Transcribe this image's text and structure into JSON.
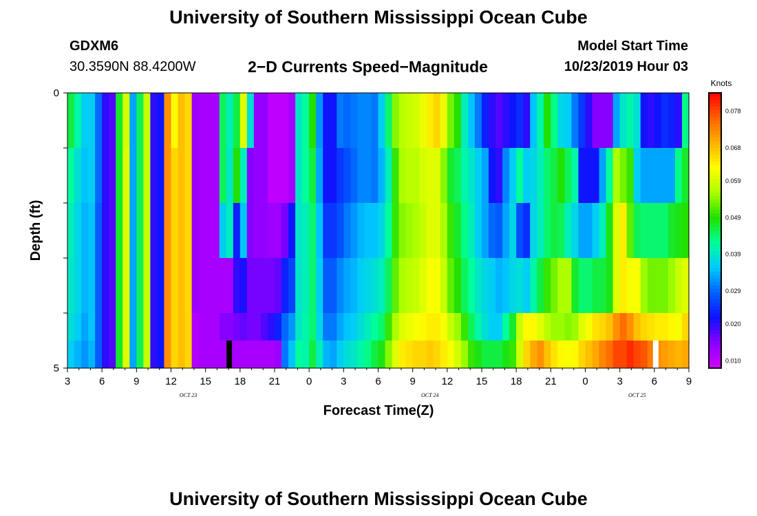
{
  "header": {
    "title": "University of Southern Mississippi Ocean Cube",
    "station": "GDXM6",
    "coords": "30.3590N 88.4200W",
    "subtitle": "2−D Currents Speed−Magnitude",
    "model_label": "Model Start Time",
    "model_time": "10/23/2019 Hour 03"
  },
  "footer": {
    "title": "University of Southern Mississippi Ocean Cube"
  },
  "chart_data": {
    "type": "heatmap",
    "title": "2−D Currents Speed−Magnitude",
    "xlabel": "Forecast Time(Z)",
    "ylabel": "Depth (ft)",
    "ylim": [
      0,
      5
    ],
    "y_tick_labels": [
      "0",
      "5"
    ],
    "x_hours": [
      3,
      6,
      9,
      12,
      15,
      18,
      21,
      0,
      3,
      6,
      9,
      12,
      15,
      18,
      21,
      0,
      3,
      6,
      9
    ],
    "x_date_labels": [
      {
        "after_hour_index": 3,
        "text": "OCT  23"
      },
      {
        "after_hour_index": 10,
        "text": "OCT  24"
      },
      {
        "after_hour_index": 16,
        "text": "OCT  25"
      }
    ],
    "x_range_hours": [
      0,
      54
    ],
    "depth_layers": [
      0,
      1,
      2,
      3,
      4,
      5
    ],
    "colorbar": {
      "unit": "Knots",
      "min": 0.008,
      "max": 0.083,
      "ticks": [
        "0.078",
        "0.068",
        "0.059",
        "0.049",
        "0.039",
        "0.029",
        "0.020",
        "0.010"
      ],
      "tick_values": [
        0.078,
        0.068,
        0.059,
        0.049,
        0.039,
        0.029,
        0.02,
        0.01
      ],
      "colors": [
        "#d200ff",
        "#8a00ff",
        "#1010ff",
        "#0060ff",
        "#00c8ff",
        "#00ff99",
        "#20e000",
        "#aaff00",
        "#ffff00",
        "#ffb000",
        "#ff6000",
        "#ff0000"
      ]
    },
    "speed_knots": [
      [
        0.046,
        0.041,
        0.036,
        0.036,
        0.029,
        0.02,
        0.018,
        0.047,
        0.059,
        0.033,
        0.045,
        0.058,
        0.02,
        0.022,
        0.072,
        0.063,
        0.068,
        0.066,
        0.013,
        0.012,
        0.012,
        0.012,
        0.045,
        0.04,
        0.046,
        0.06,
        0.038,
        0.014,
        0.014,
        0.01,
        0.01,
        0.01,
        0.012,
        0.039,
        0.042,
        0.049,
        0.032,
        0.022,
        0.022,
        0.03,
        0.029,
        0.03,
        0.031,
        0.031,
        0.03,
        0.036,
        0.044,
        0.054,
        0.057,
        0.058,
        0.059,
        0.061,
        0.064,
        0.066,
        0.061,
        0.053,
        0.049,
        0.04,
        0.035,
        0.03,
        0.023,
        0.02,
        0.018,
        0.02,
        0.022,
        0.024,
        0.02,
        0.035,
        0.041,
        0.049,
        0.043,
        0.037,
        0.036,
        0.03,
        0.025,
        0.02,
        0.015,
        0.015,
        0.015,
        0.033,
        0.039,
        0.041,
        0.038,
        0.022,
        0.02,
        0.022,
        0.024,
        0.023,
        0.02,
        0.043
      ],
      [
        0.042,
        0.038,
        0.035,
        0.036,
        0.029,
        0.02,
        0.018,
        0.047,
        0.06,
        0.033,
        0.045,
        0.058,
        0.02,
        0.022,
        0.072,
        0.066,
        0.068,
        0.066,
        0.013,
        0.012,
        0.012,
        0.012,
        0.045,
        0.039,
        0.049,
        0.04,
        0.015,
        0.014,
        0.014,
        0.01,
        0.01,
        0.01,
        0.012,
        0.039,
        0.042,
        0.046,
        0.033,
        0.022,
        0.022,
        0.025,
        0.027,
        0.029,
        0.031,
        0.031,
        0.03,
        0.034,
        0.04,
        0.05,
        0.056,
        0.057,
        0.057,
        0.059,
        0.06,
        0.06,
        0.054,
        0.047,
        0.045,
        0.041,
        0.039,
        0.036,
        0.033,
        0.022,
        0.02,
        0.031,
        0.036,
        0.042,
        0.036,
        0.037,
        0.04,
        0.044,
        0.046,
        0.049,
        0.045,
        0.041,
        0.022,
        0.022,
        0.022,
        0.033,
        0.042,
        0.056,
        0.053,
        0.05,
        0.036,
        0.033,
        0.033,
        0.033,
        0.033,
        0.033,
        0.043,
        0.047
      ],
      [
        0.04,
        0.037,
        0.034,
        0.035,
        0.028,
        0.02,
        0.018,
        0.047,
        0.06,
        0.033,
        0.045,
        0.058,
        0.02,
        0.022,
        0.072,
        0.066,
        0.068,
        0.066,
        0.013,
        0.012,
        0.012,
        0.012,
        0.036,
        0.04,
        0.023,
        0.035,
        0.015,
        0.014,
        0.014,
        0.013,
        0.013,
        0.016,
        0.022,
        0.039,
        0.04,
        0.044,
        0.035,
        0.025,
        0.025,
        0.027,
        0.03,
        0.032,
        0.034,
        0.035,
        0.035,
        0.037,
        0.042,
        0.05,
        0.054,
        0.055,
        0.056,
        0.058,
        0.06,
        0.06,
        0.056,
        0.05,
        0.047,
        0.043,
        0.04,
        0.036,
        0.033,
        0.029,
        0.028,
        0.033,
        0.037,
        0.027,
        0.024,
        0.037,
        0.04,
        0.044,
        0.046,
        0.045,
        0.04,
        0.037,
        0.033,
        0.033,
        0.036,
        0.04,
        0.048,
        0.06,
        0.064,
        0.052,
        0.045,
        0.044,
        0.044,
        0.044,
        0.044,
        0.047,
        0.048,
        0.049
      ],
      [
        0.039,
        0.037,
        0.034,
        0.035,
        0.028,
        0.02,
        0.018,
        0.047,
        0.06,
        0.033,
        0.045,
        0.058,
        0.02,
        0.022,
        0.072,
        0.066,
        0.068,
        0.066,
        0.013,
        0.012,
        0.012,
        0.012,
        0.012,
        0.012,
        0.02,
        0.021,
        0.016,
        0.016,
        0.016,
        0.016,
        0.017,
        0.023,
        0.026,
        0.039,
        0.04,
        0.044,
        0.036,
        0.028,
        0.028,
        0.031,
        0.033,
        0.034,
        0.036,
        0.037,
        0.038,
        0.04,
        0.045,
        0.052,
        0.056,
        0.057,
        0.058,
        0.06,
        0.062,
        0.062,
        0.058,
        0.052,
        0.049,
        0.045,
        0.042,
        0.039,
        0.037,
        0.036,
        0.034,
        0.035,
        0.037,
        0.038,
        0.036,
        0.041,
        0.046,
        0.05,
        0.053,
        0.056,
        0.056,
        0.047,
        0.044,
        0.044,
        0.046,
        0.046,
        0.048,
        0.06,
        0.064,
        0.062,
        0.062,
        0.055,
        0.053,
        0.053,
        0.053,
        0.055,
        0.058,
        0.06
      ],
      [
        0.038,
        0.036,
        0.033,
        0.035,
        0.028,
        0.02,
        0.018,
        0.047,
        0.06,
        0.033,
        0.045,
        0.058,
        0.02,
        0.022,
        0.072,
        0.066,
        0.068,
        0.066,
        0.011,
        0.012,
        0.012,
        0.012,
        0.015,
        0.015,
        0.016,
        0.017,
        0.016,
        0.016,
        0.018,
        0.02,
        0.023,
        0.029,
        0.032,
        0.039,
        0.041,
        0.044,
        0.037,
        0.03,
        0.03,
        0.033,
        0.035,
        0.036,
        0.038,
        0.04,
        0.042,
        0.044,
        0.05,
        0.056,
        0.06,
        0.061,
        0.062,
        0.063,
        0.064,
        0.064,
        0.062,
        0.058,
        0.055,
        0.05,
        0.045,
        0.041,
        0.038,
        0.036,
        0.036,
        0.042,
        0.047,
        0.058,
        0.063,
        0.063,
        0.06,
        0.057,
        0.055,
        0.055,
        0.054,
        0.055,
        0.06,
        0.062,
        0.065,
        0.066,
        0.068,
        0.072,
        0.075,
        0.072,
        0.068,
        0.066,
        0.065,
        0.064,
        0.064,
        0.063,
        0.062,
        0.066
      ],
      [
        0.036,
        0.034,
        0.032,
        0.034,
        0.028,
        0.02,
        0.018,
        0.047,
        0.06,
        0.033,
        0.045,
        0.058,
        0.02,
        0.022,
        0.072,
        0.066,
        0.068,
        0.066,
        0.011,
        0.012,
        0.012,
        0.012,
        0.012,
        0.012,
        0.012,
        0.012,
        0.012,
        0.012,
        0.012,
        0.012,
        0.013,
        0.03,
        0.035,
        0.042,
        0.041,
        0.046,
        0.04,
        0.034,
        0.033,
        0.036,
        0.038,
        0.039,
        0.041,
        0.043,
        0.046,
        0.048,
        0.054,
        0.06,
        0.064,
        0.065,
        0.066,
        0.066,
        0.067,
        0.066,
        0.064,
        0.062,
        0.059,
        0.055,
        0.05,
        0.048,
        0.046,
        0.046,
        0.046,
        0.048,
        0.05,
        0.059,
        0.066,
        0.07,
        0.072,
        0.068,
        0.065,
        0.063,
        0.062,
        0.063,
        0.066,
        0.068,
        0.07,
        0.073,
        0.075,
        0.078,
        0.078,
        0.08,
        0.078,
        0.077,
        0.074,
        0.072,
        0.071,
        0.07,
        0.069,
        0.07
      ]
    ],
    "mask_black_at_hour": 14,
    "mask_white_at_hour": 51
  }
}
